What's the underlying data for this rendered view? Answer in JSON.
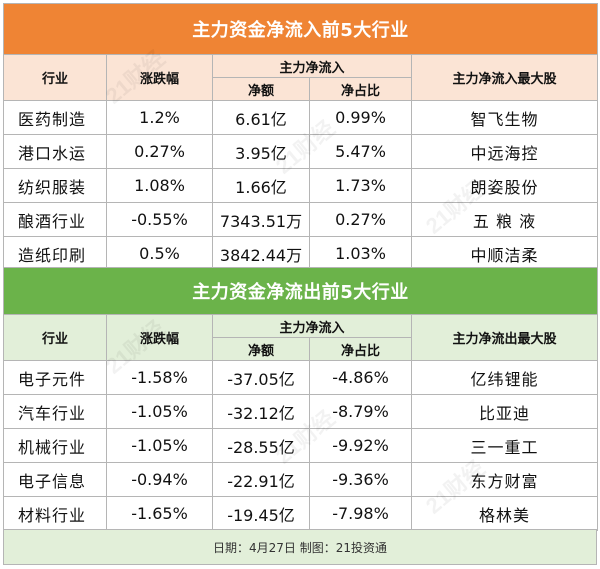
{
  "inflow": {
    "title": "主力资金净流入前5大行业",
    "headers": {
      "industry": "行业",
      "change": "涨跌幅",
      "net_group": "主力净流入",
      "net_amount": "净额",
      "net_ratio": "净占比",
      "top_stock": "主力净流入最大股"
    },
    "rows": [
      {
        "industry": "医药制造",
        "change": "1.2%",
        "net_amount": "6.61亿",
        "net_ratio": "0.99%",
        "top_stock": "智飞生物"
      },
      {
        "industry": "港口水运",
        "change": "0.27%",
        "net_amount": "3.95亿",
        "net_ratio": "5.47%",
        "top_stock": "中远海控"
      },
      {
        "industry": "纺织服装",
        "change": "1.08%",
        "net_amount": "1.66亿",
        "net_ratio": "1.73%",
        "top_stock": "朗姿股份"
      },
      {
        "industry": "酿酒行业",
        "change": "-0.55%",
        "net_amount": "7343.51万",
        "net_ratio": "0.27%",
        "top_stock": "五 粮 液"
      },
      {
        "industry": "造纸印刷",
        "change": "0.5%",
        "net_amount": "3842.44万",
        "net_ratio": "1.03%",
        "top_stock": "中顺洁柔"
      }
    ]
  },
  "outflow": {
    "title": "主力资金净流出前5大行业",
    "headers": {
      "industry": "行业",
      "change": "涨跌幅",
      "net_group": "主力净流入",
      "net_amount": "净额",
      "net_ratio": "净占比",
      "top_stock": "主力净流出最大股"
    },
    "rows": [
      {
        "industry": "电子元件",
        "change": "-1.58%",
        "net_amount": "-37.05亿",
        "net_ratio": "-4.86%",
        "top_stock": "亿纬锂能"
      },
      {
        "industry": "汽车行业",
        "change": "-1.05%",
        "net_amount": "-32.12亿",
        "net_ratio": "-8.79%",
        "top_stock": "比亚迪"
      },
      {
        "industry": "机械行业",
        "change": "-1.05%",
        "net_amount": "-28.55亿",
        "net_ratio": "-9.92%",
        "top_stock": "三一重工"
      },
      {
        "industry": "电子信息",
        "change": "-0.94%",
        "net_amount": "-22.91亿",
        "net_ratio": "-9.36%",
        "top_stock": "东方财富"
      },
      {
        "industry": "材料行业",
        "change": "-1.65%",
        "net_amount": "-19.45亿",
        "net_ratio": "-7.98%",
        "top_stock": "格林美"
      }
    ]
  },
  "footer": "日期：4月27日 制图：21投资通",
  "watermark": "21财经",
  "colors": {
    "inflow_banner": "#ef8434",
    "inflow_header": "#fbe4d5",
    "outflow_banner": "#6bb34a",
    "outflow_header": "#e2efd9",
    "border": "#b5b5b5"
  }
}
